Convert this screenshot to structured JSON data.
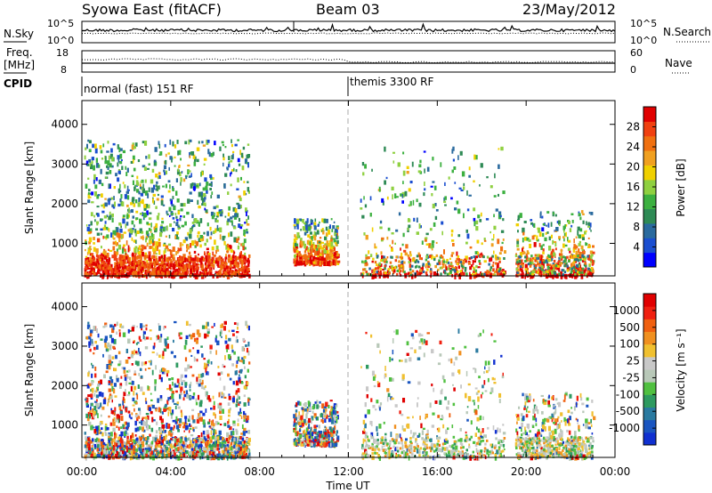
{
  "header": {
    "title": "Syowa East (fitACF)",
    "beam": "Beam 03",
    "date": "23/May/2012"
  },
  "nsky_panel": {
    "label": "N.Sky",
    "left_ticks": [
      "10^5",
      "10^0"
    ],
    "right_ticks": [
      "10^5",
      "10^0"
    ],
    "right_label": "N.Search"
  },
  "freq_panel": {
    "label_top": "Freq.",
    "label_bottom": "[MHz]",
    "left_ticks": [
      "18",
      "8"
    ],
    "right_ticks": [
      "60",
      "0"
    ],
    "right_label": "Nave"
  },
  "cpid_panel": {
    "label": "CPID",
    "segments": [
      "normal (fast) 151 RF",
      "themis 3300 RF"
    ]
  },
  "power_panel": {
    "ylabel": "Slant Range [km]",
    "yticks": [
      "4000",
      "3000",
      "2000",
      "1000"
    ],
    "colorbar_label": "Power [dB]",
    "colorbar_ticks": [
      "28",
      "24",
      "20",
      "16",
      "12",
      "8",
      "4"
    ],
    "colors": [
      "#0000ff",
      "#1a4ed0",
      "#2a6a9e",
      "#2e8a55",
      "#3cb040",
      "#8fd040",
      "#f0d000",
      "#f0a020",
      "#f07010",
      "#f04010",
      "#e00000"
    ]
  },
  "velocity_panel": {
    "ylabel": "Slant Range [km]",
    "yticks": [
      "4000",
      "3000",
      "2000",
      "1000"
    ],
    "colorbar_label": "Velocity [m s⁻¹]",
    "colorbar_ticks": [
      "1000",
      "500",
      "100",
      "25",
      "-25",
      "-100",
      "-500",
      "-1000"
    ],
    "colors": [
      "#1030d0",
      "#1a55c0",
      "#2a7aa0",
      "#2e9a60",
      "#50c040",
      "#b8c8b8",
      "#c8c8c8",
      "#f0c030",
      "#f09020",
      "#f06010",
      "#f02010",
      "#e00000"
    ]
  },
  "xaxis": {
    "label": "Time UT",
    "ticks": [
      "00:00",
      "04:00",
      "08:00",
      "12:00",
      "16:00",
      "20:00",
      "00:00"
    ]
  },
  "chart_data": {
    "type": "heatmap",
    "x_range_hours": [
      0,
      24
    ],
    "y_range_km": [
      180,
      4600
    ],
    "cpid_change_hour": 12,
    "power_db_range": [
      0,
      32
    ],
    "velocity_range_m_s": [
      -1200,
      1200
    ],
    "echo_regions": [
      {
        "t0": 0.1,
        "t1": 7.5,
        "r0": 180,
        "r1": 3600,
        "note": "dense scatter"
      },
      {
        "t0": 9.5,
        "t1": 11.5,
        "r0": 500,
        "r1": 1600
      },
      {
        "t0": 12.5,
        "t1": 19.0,
        "r0": 180,
        "r1": 3400
      },
      {
        "t0": 19.5,
        "t1": 23.0,
        "r0": 180,
        "r1": 1800
      }
    ]
  }
}
